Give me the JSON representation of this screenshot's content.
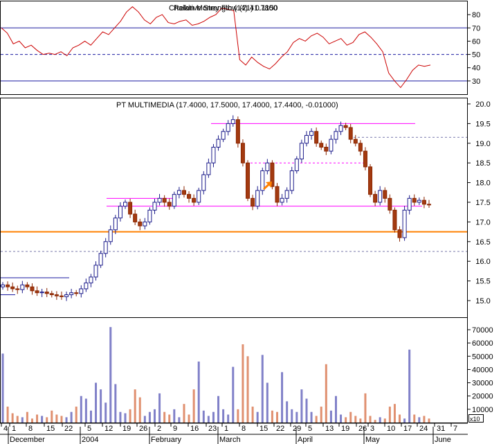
{
  "chart_data": [
    {
      "type": "line",
      "panel": "indicator",
      "title": "Relative Strength (14) 41.7800",
      "overlay_title": "Chaikin Money Flow (21) 0.1150",
      "ylim": [
        20,
        90
      ],
      "yticks": [
        30,
        40,
        50,
        60,
        70,
        80
      ],
      "reference_lines": [
        {
          "value": 70,
          "style": "solid",
          "color": "#1a1aa0"
        },
        {
          "value": 50,
          "style": "dashed",
          "color": "#1a1aa0"
        },
        {
          "value": 30,
          "style": "solid",
          "color": "#1a1aa0"
        }
      ],
      "series": [
        {
          "color": "#cc0000",
          "values": [
            70,
            66,
            58,
            60,
            55,
            57,
            53,
            50,
            51,
            50,
            52,
            49,
            55,
            57,
            60,
            57,
            62,
            67,
            65,
            70,
            75,
            82,
            86,
            82,
            76,
            73,
            78,
            80,
            74,
            73,
            75,
            76,
            72,
            73,
            75,
            78,
            80,
            85,
            84,
            83,
            46,
            42,
            48,
            44,
            41,
            39,
            43,
            48,
            52,
            59,
            62,
            60,
            64,
            66,
            63,
            58,
            60,
            62,
            57,
            59,
            65,
            67,
            63,
            58,
            52,
            36,
            30,
            25,
            31,
            38,
            42,
            41,
            42
          ]
        }
      ]
    },
    {
      "type": "candlestick",
      "panel": "price",
      "title": "PT MULTIMEDIA (17.4000, 17.5000, 17.4000, 17.4400, -0.01000)",
      "ylim": [
        14.6,
        20.1
      ],
      "yticks": [
        15.0,
        15.5,
        16.0,
        16.5,
        17.0,
        17.5,
        18.0,
        18.5,
        19.0,
        19.5,
        20.0
      ],
      "close": [
        15.4,
        15.35,
        15.3,
        15.28,
        15.4,
        15.35,
        15.25,
        15.2,
        15.22,
        15.18,
        15.15,
        15.12,
        15.1,
        15.15,
        15.2,
        15.18,
        15.3,
        15.45,
        15.6,
        15.9,
        16.2,
        16.5,
        16.8,
        17.1,
        17.4,
        17.5,
        17.2,
        17.0,
        16.9,
        17.0,
        17.3,
        17.5,
        17.6,
        17.5,
        17.4,
        17.7,
        17.8,
        17.7,
        17.6,
        17.5,
        17.8,
        18.2,
        18.5,
        18.9,
        19.1,
        19.3,
        19.5,
        19.6,
        19.0,
        18.5,
        17.6,
        17.4,
        17.8,
        18.3,
        18.5,
        17.9,
        17.5,
        17.6,
        17.8,
        18.3,
        18.6,
        19.0,
        19.2,
        19.3,
        19.0,
        18.9,
        18.8,
        19.1,
        19.3,
        19.45,
        19.4,
        19.1,
        19.0,
        18.8,
        18.4,
        17.7,
        17.5,
        17.8,
        17.6,
        17.3,
        16.8,
        16.6,
        17.3,
        17.6,
        17.5,
        17.55,
        17.45,
        17.44
      ],
      "reference_lines": [
        {
          "value": 19.5,
          "style": "solid",
          "color": "#ff00ff"
        },
        {
          "value": 18.5,
          "style": "dashed",
          "color": "#ff00ff"
        },
        {
          "value": 17.6,
          "style": "solid",
          "color": "#ff00ff"
        },
        {
          "value": 17.4,
          "style": "solid",
          "color": "#ff00ff"
        },
        {
          "value": 16.75,
          "style": "solid",
          "color": "#ff8000"
        },
        {
          "value": 19.15,
          "style": "dashed",
          "color": "#7777aa"
        },
        {
          "value": 16.25,
          "style": "dashed",
          "color": "#7777aa"
        },
        {
          "value": 15.58,
          "style": "solid",
          "color": "#1a1aa0"
        },
        {
          "value": 15.15,
          "style": "solid",
          "color": "#1a1aa0"
        }
      ],
      "annotation": {
        "type": "arrow",
        "color": "#ff8000"
      }
    },
    {
      "type": "bar",
      "panel": "volume",
      "ylim": [
        0,
        75000
      ],
      "yticks": [
        10000,
        20000,
        30000,
        40000,
        50000,
        60000,
        70000
      ],
      "y_multiplier_label": "x10",
      "values": [
        52000,
        12000,
        7000,
        5000,
        4000,
        8000,
        3000,
        6000,
        5000,
        4000,
        9000,
        6000,
        5000,
        4000,
        8000,
        12000,
        20000,
        18000,
        9000,
        30000,
        25000,
        15000,
        72000,
        29000,
        8000,
        7000,
        10000,
        25000,
        19000,
        5000,
        8000,
        10000,
        22000,
        8000,
        6000,
        10000,
        4000,
        14000,
        6000,
        25000,
        46000,
        9000,
        5000,
        8000,
        20000,
        10000,
        6000,
        42000,
        10000,
        59000,
        50000,
        12000,
        8000,
        51000,
        30000,
        9000,
        8000,
        38000,
        16000,
        10000,
        8000,
        25000,
        18000,
        8000,
        5000,
        12000,
        44000,
        9000,
        20000,
        6000,
        4000,
        8000,
        5000,
        3000,
        22000,
        5000,
        2000,
        4000,
        3000,
        12000,
        14000,
        6000,
        3000,
        55000,
        6000,
        4000,
        5000,
        3000
      ],
      "up_color": "#8080c8",
      "down_color": "#e09070"
    }
  ],
  "x_axis": {
    "tick_labels": [
      "4",
      "1",
      "8",
      "15",
      "22",
      "5",
      "12",
      "19",
      "26",
      "2",
      "9",
      "16",
      "23",
      "1",
      "8",
      "15",
      "22",
      "29",
      "5",
      "13",
      "19",
      "26",
      "3",
      "10",
      "17",
      "24",
      "31",
      "7"
    ],
    "month_labels": [
      "December",
      "2004",
      "February",
      "March",
      "April",
      "May",
      "June"
    ]
  }
}
